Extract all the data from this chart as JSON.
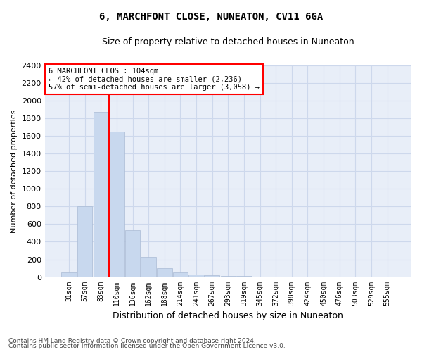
{
  "title": "6, MARCHFONT CLOSE, NUNEATON, CV11 6GA",
  "subtitle": "Size of property relative to detached houses in Nuneaton",
  "xlabel": "Distribution of detached houses by size in Nuneaton",
  "ylabel": "Number of detached properties",
  "categories": [
    "31sqm",
    "57sqm",
    "83sqm",
    "110sqm",
    "136sqm",
    "162sqm",
    "188sqm",
    "214sqm",
    "241sqm",
    "267sqm",
    "293sqm",
    "319sqm",
    "345sqm",
    "372sqm",
    "398sqm",
    "424sqm",
    "450sqm",
    "476sqm",
    "503sqm",
    "529sqm",
    "555sqm"
  ],
  "values": [
    50,
    800,
    1870,
    1650,
    530,
    230,
    100,
    50,
    30,
    20,
    10,
    10,
    0,
    0,
    0,
    0,
    0,
    0,
    0,
    0,
    0
  ],
  "bar_color": "#c8d8ee",
  "bar_edge_color": "#aabbd4",
  "property_line_color": "red",
  "property_line_index": 2.5,
  "annotation_text": "6 MARCHFONT CLOSE: 104sqm\n← 42% of detached houses are smaller (2,236)\n57% of semi-detached houses are larger (3,058) →",
  "annotation_box_color": "white",
  "annotation_box_edge": "red",
  "ylim": [
    0,
    2400
  ],
  "yticks": [
    0,
    200,
    400,
    600,
    800,
    1000,
    1200,
    1400,
    1600,
    1800,
    2000,
    2200,
    2400
  ],
  "grid_color": "#cdd8ec",
  "bg_color": "#e8eef8",
  "footer1": "Contains HM Land Registry data © Crown copyright and database right 2024.",
  "footer2": "Contains public sector information licensed under the Open Government Licence v3.0."
}
